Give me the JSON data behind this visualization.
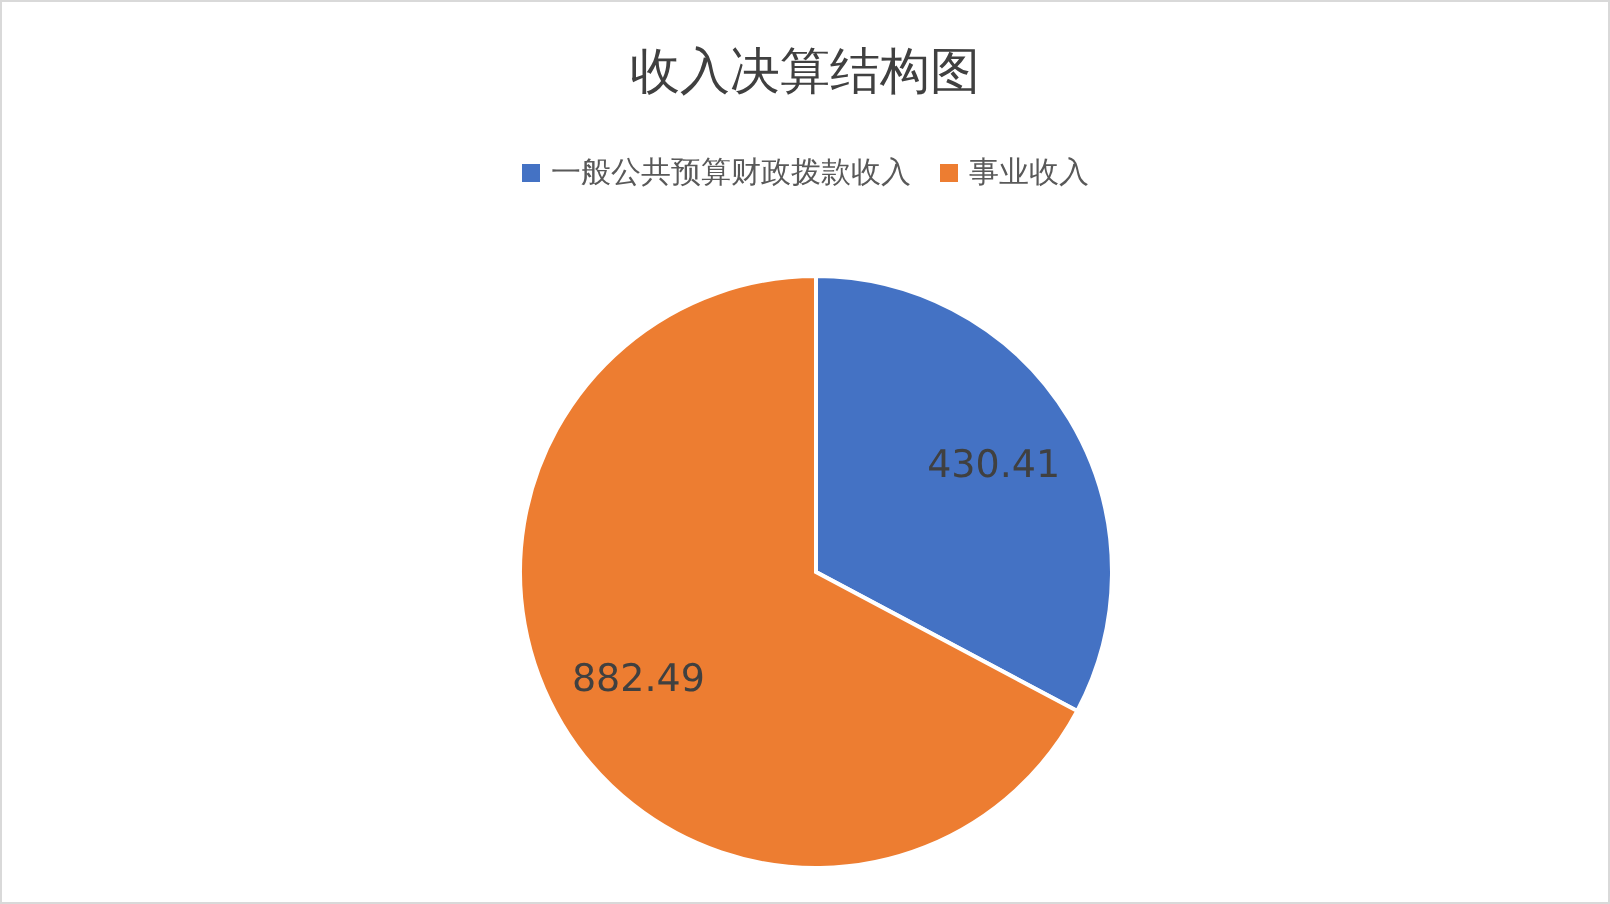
{
  "chart_data": {
    "type": "pie",
    "title": "收入决算结构图",
    "categories": [
      "一般公共预算财政拨款收入",
      "事业收入"
    ],
    "values": [
      430.41,
      882.49
    ],
    "colors": [
      "#4472c4",
      "#ed7d31"
    ],
    "data_labels": true,
    "legend": "top"
  }
}
